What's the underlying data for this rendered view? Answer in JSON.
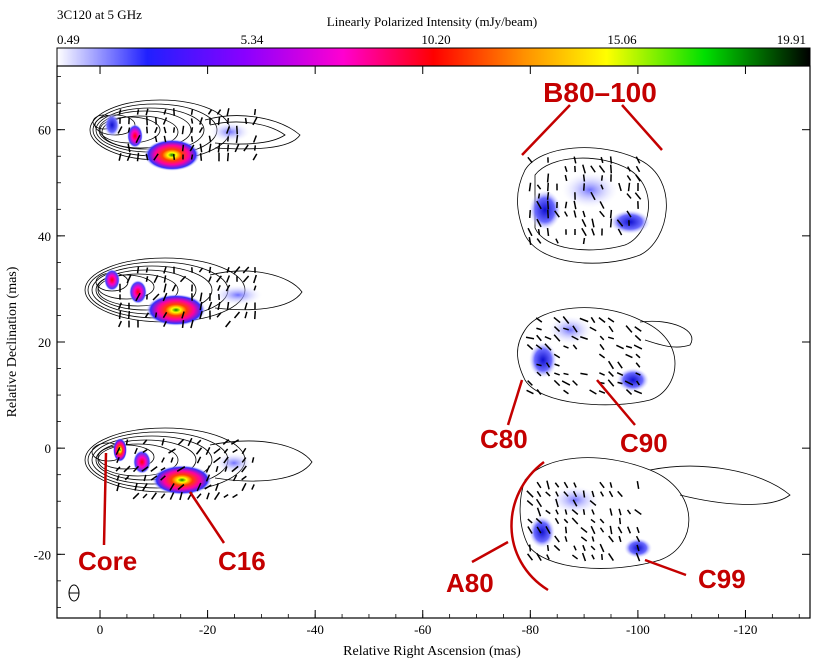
{
  "figure": {
    "source_title": "3C120 at 5 GHz",
    "colorbar_title": "Linearly Polarized Intensity (mJy/beam)",
    "colorbar_ticks": [
      "0.49",
      "5.34",
      "10.20",
      "15.06",
      "19.91"
    ],
    "colorbar_stops": [
      "#ffffff",
      "#1010ff",
      "#d000ff",
      "#ff20a0",
      "#ff0000",
      "#ffa000",
      "#ffff00",
      "#00e000",
      "#000000"
    ],
    "xlabel": "Relative Right Ascension (mas)",
    "ylabel": "Relative Declination (mas)",
    "x_ticks": [
      0,
      -20,
      -40,
      -60,
      -80,
      -100,
      -120
    ],
    "y_ticks": [
      60,
      40,
      20,
      0,
      -20
    ],
    "xlim": [
      8,
      -132
    ],
    "ylim": [
      -32,
      72
    ]
  },
  "labels": {
    "b80": "B80–100",
    "c80": "C80",
    "c90": "C90",
    "core": "Core",
    "c16": "C16",
    "a80": "A80",
    "c99": "C99"
  }
}
